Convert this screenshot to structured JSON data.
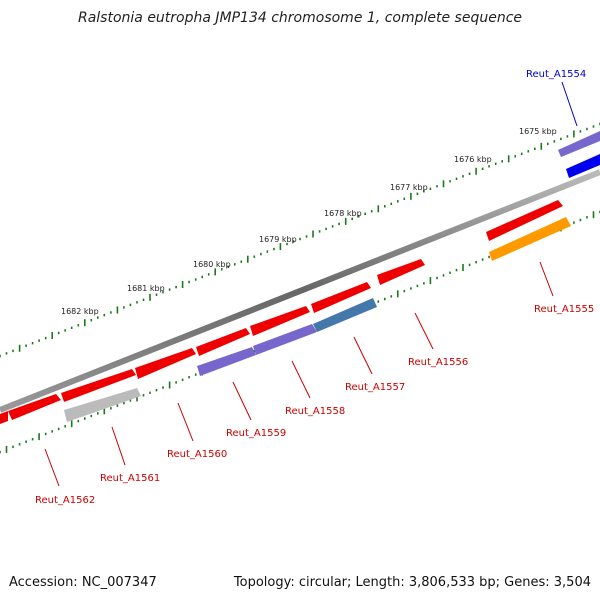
{
  "title": "Ralstonia eutropha JMP134 chromosome 1, complete sequence",
  "accession": "Accession: NC_007347",
  "topology": "Topology: circular; Length: 3,806,533 bp; Genes: 3,504",
  "colors": {
    "backbone": "#777777",
    "ticks": "#1a7a1a",
    "red_gene": "#ee0000",
    "gray_gene": "#bbbbbb",
    "purple_gene": "#7766cc",
    "steelblue_gene": "#4477aa",
    "orange_gene": "#ff9900",
    "blue_gene": "#0000ee",
    "label_red": "#cc0000",
    "label_blue": "#0000cc"
  },
  "scale": {
    "unit": "kbp",
    "labels": [
      "1675 kbp",
      "1676 kbp",
      "1677 kbp",
      "1678 kbp",
      "1679 kbp",
      "1680 kbp",
      "1681 kbp",
      "1682 kbp"
    ]
  },
  "gene_labels": [
    {
      "name": "Reut_A1554",
      "color": "blue"
    },
    {
      "name": "Reut_A1555",
      "color": "red"
    },
    {
      "name": "Reut_A1556",
      "color": "red"
    },
    {
      "name": "Reut_A1557",
      "color": "red"
    },
    {
      "name": "Reut_A1558",
      "color": "red"
    },
    {
      "name": "Reut_A1559",
      "color": "red"
    },
    {
      "name": "Reut_A1560",
      "color": "red"
    },
    {
      "name": "Reut_A1561",
      "color": "red"
    },
    {
      "name": "Reut_A1562",
      "color": "red"
    }
  ]
}
